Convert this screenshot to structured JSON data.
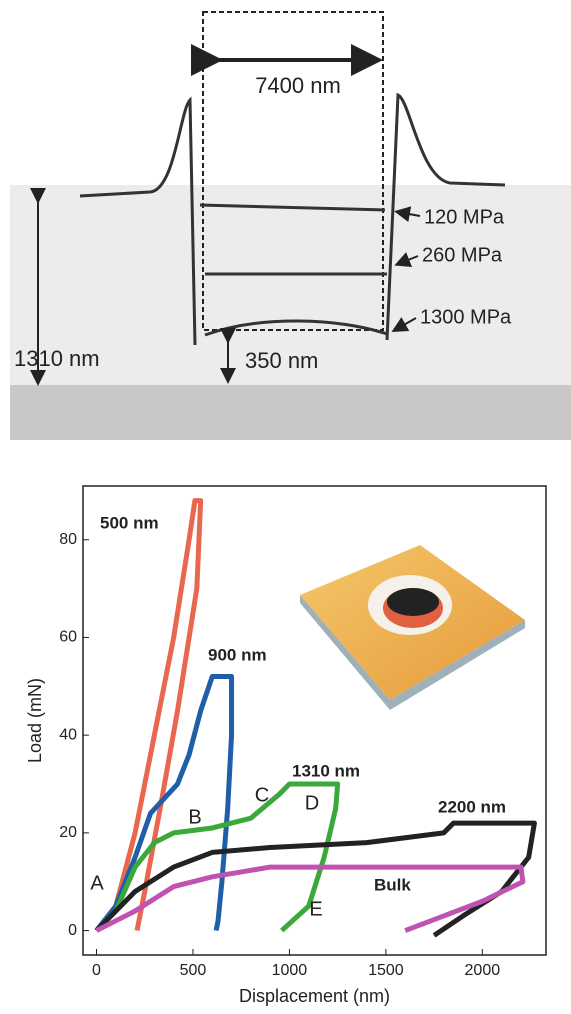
{
  "diagram": {
    "width_label": "7400 nm",
    "stress_labels": [
      "120 MPa",
      "260 MPa",
      "1300 MPa"
    ],
    "thickness_label": "1310 nm",
    "depth_label": "350 nm"
  },
  "chart_data": {
    "type": "line",
    "x_label": "Displacement (nm)",
    "y_label": "Load (mN)",
    "xlim": [
      -70,
      2330
    ],
    "ylim": [
      -5,
      91
    ],
    "xticks": [
      0,
      500,
      1000,
      1500,
      2000
    ],
    "yticks": [
      0,
      20,
      40,
      60,
      80
    ],
    "annotations": [
      "A",
      "B",
      "C",
      "D",
      "E"
    ],
    "series": [
      {
        "name": "500 nm",
        "color": "#e8674e",
        "x": [
          0,
          100,
          200,
          300,
          400,
          480,
          510,
          540,
          520,
          420,
          330,
          250,
          210
        ],
        "values": [
          0,
          5,
          20,
          40,
          60,
          80,
          88,
          88,
          70,
          45,
          25,
          8,
          0
        ]
      },
      {
        "name": "900 nm",
        "color": "#1f5ea8",
        "x": [
          0,
          100,
          200,
          280,
          350,
          420,
          480,
          540,
          600,
          700,
          700,
          680,
          650,
          630,
          620
        ],
        "values": [
          0,
          5,
          15,
          24,
          27,
          30,
          36,
          45,
          52,
          52,
          40,
          25,
          10,
          2,
          0
        ]
      },
      {
        "name": "1310 nm",
        "color": "#3aa83a",
        "x": [
          0,
          100,
          200,
          300,
          400,
          600,
          800,
          950,
          1000,
          1250,
          1240,
          1180,
          1100,
          960
        ],
        "values": [
          0,
          4,
          13,
          18,
          20,
          21,
          23,
          28,
          30,
          30,
          25,
          15,
          5,
          0
        ]
      },
      {
        "name": "2200 nm",
        "color": "#222222",
        "x": [
          0,
          200,
          400,
          600,
          900,
          1400,
          1800,
          1850,
          2270,
          2240,
          2100,
          1900,
          1750
        ],
        "values": [
          0,
          8,
          13,
          16,
          17,
          18,
          20,
          22,
          22,
          15,
          8,
          3,
          -1
        ]
      },
      {
        "name": "Bulk",
        "color": "#c052b2",
        "x": [
          0,
          200,
          400,
          600,
          900,
          1500,
          2100,
          2200,
          2210,
          2000,
          1800,
          1600
        ],
        "values": [
          0,
          4,
          9,
          11,
          13,
          13,
          13,
          13,
          10,
          6,
          3,
          0
        ]
      }
    ]
  }
}
